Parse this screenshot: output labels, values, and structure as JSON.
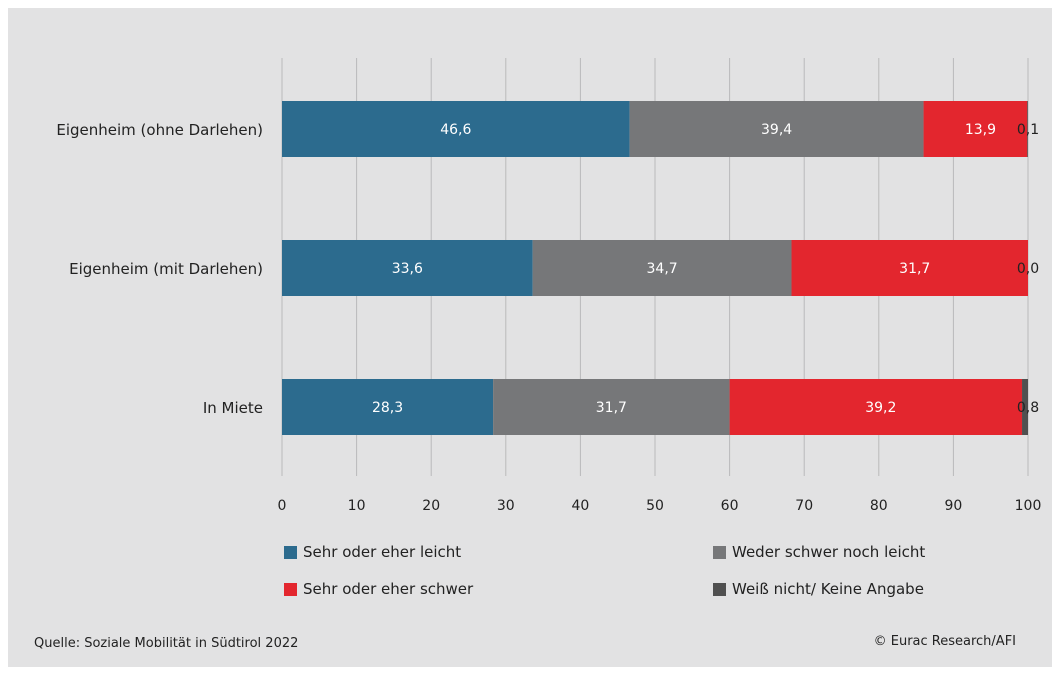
{
  "chart_data": {
    "type": "bar",
    "orientation": "horizontal",
    "stacked": true,
    "categories": [
      "Eigenheim (ohne Darlehen)",
      "Eigenheim (mit Darlehen)",
      "In Miete"
    ],
    "series": [
      {
        "name": "Sehr oder eher leicht",
        "color": "#2c6b8e",
        "values": [
          46.6,
          33.6,
          28.3
        ],
        "labels": [
          "46,6",
          "33,6",
          "28,3"
        ]
      },
      {
        "name": "Weder schwer noch leicht",
        "color": "#767779",
        "values": [
          39.4,
          34.7,
          31.7
        ],
        "labels": [
          "39,4",
          "34,7",
          "31,7"
        ]
      },
      {
        "name": "Sehr oder eher schwer",
        "color": "#e3262e",
        "values": [
          13.9,
          31.7,
          39.2
        ],
        "labels": [
          "13,9",
          "31,7",
          "39,2"
        ]
      },
      {
        "name": "Weiß nicht/ Keine Angabe",
        "color": "#505050",
        "values": [
          0.1,
          0.0,
          0.8
        ],
        "labels": [
          "0,1",
          "0,0",
          "0,8"
        ]
      }
    ],
    "xlim": [
      0,
      100
    ],
    "xticks": [
      0,
      10,
      20,
      30,
      40,
      50,
      60,
      70,
      80,
      90,
      100
    ],
    "grid": true,
    "legend_position": "bottom"
  },
  "footer": {
    "source": "Quelle: Soziale Mobilität in Südtirol 2022",
    "credit": "© Eurac Research/AFI"
  }
}
